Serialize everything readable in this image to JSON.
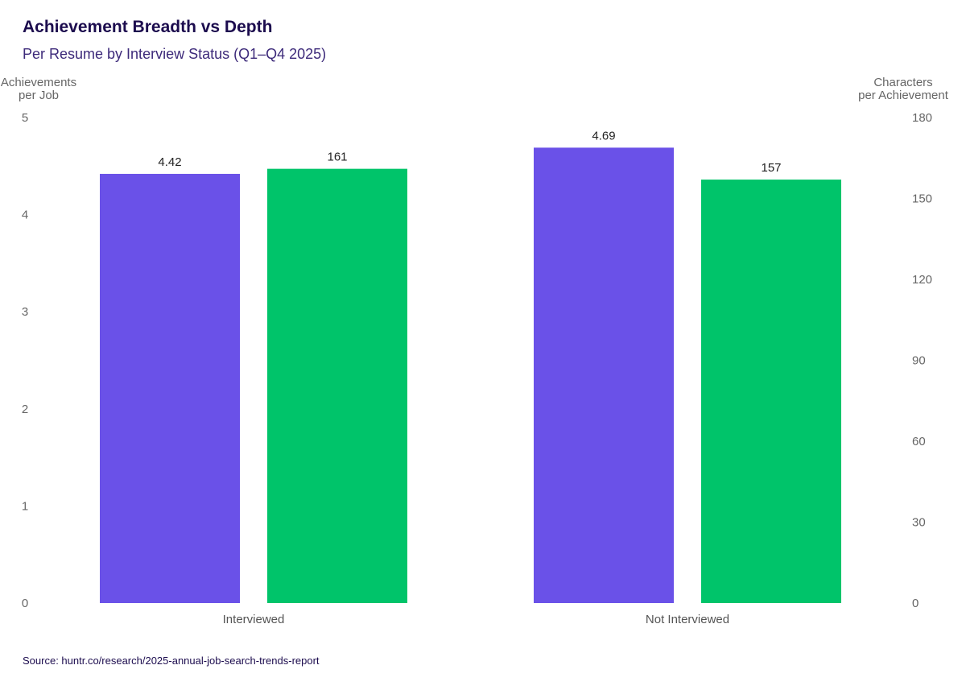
{
  "title": "Achievement Breadth vs Depth",
  "subtitle": "Per Resume by Interview Status (Q1–Q4 2025)",
  "source": "Source: huntr.co/research/2025-annual-job-search-trends-report",
  "chart_data": {
    "type": "bar",
    "categories": [
      "Interviewed",
      "Not Interviewed"
    ],
    "series": [
      {
        "values": [
          4.42,
          4.69
        ],
        "labels": [
          "4.42",
          "4.69"
        ],
        "axis": "left",
        "color": "#6a51e8"
      },
      {
        "values": [
          161,
          157
        ],
        "labels": [
          "161",
          "157"
        ],
        "axis": "right",
        "color": "#00c46a"
      }
    ],
    "y_left": {
      "label_lines": [
        "Achievements",
        "per Job"
      ],
      "range": [
        0,
        5
      ],
      "ticks": [
        "0",
        "1",
        "2",
        "3",
        "4",
        "5"
      ]
    },
    "y_right": {
      "label_lines": [
        "Characters",
        "per Achievement"
      ],
      "range": [
        0,
        180
      ],
      "ticks": [
        "0",
        "30",
        "60",
        "90",
        "120",
        "150",
        "180"
      ]
    },
    "grid": false,
    "legend": "none"
  }
}
